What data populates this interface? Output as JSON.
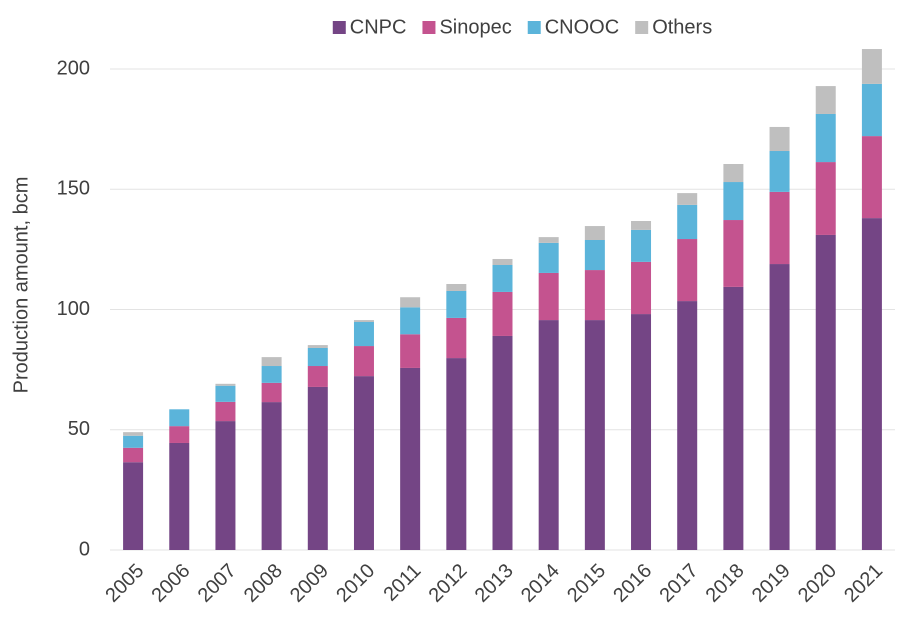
{
  "chart_data": {
    "type": "stacked_bar",
    "y_label": "Production amount, bcm",
    "categories": [
      "2005",
      "2006",
      "2007",
      "2008",
      "2009",
      "2010",
      "2011",
      "2012",
      "2013",
      "2014",
      "2015",
      "2016",
      "2017",
      "2018",
      "2019",
      "2020",
      "2021"
    ],
    "series": [
      {
        "name": "CNPC",
        "color": "#744585",
        "values": [
          36.5,
          44.5,
          53.6,
          61.5,
          67.8,
          72.3,
          75.7,
          79.8,
          89,
          95.6,
          95.6,
          98.1,
          103.5,
          109.4,
          118.9,
          131,
          138
        ]
      },
      {
        "name": "Sinopec",
        "color": "#c4538f",
        "values": [
          6,
          7,
          8,
          8,
          8.7,
          12.5,
          14,
          16.7,
          18.3,
          19.6,
          20.8,
          21.7,
          25.8,
          27.8,
          30,
          30.3,
          34.1
        ]
      },
      {
        "name": "CNOOC",
        "color": "#5bb4da",
        "values": [
          5,
          7,
          6.7,
          7,
          7.5,
          10,
          11.2,
          11.2,
          11.2,
          12.5,
          12.5,
          13.3,
          14.2,
          15.8,
          17,
          20,
          21.7
        ]
      },
      {
        "name": "Others",
        "color": "#bfbfbf",
        "values": [
          1.5,
          0,
          0.8,
          3.7,
          1.2,
          0.8,
          4.2,
          2.9,
          2.5,
          2.4,
          5.8,
          3.7,
          4.9,
          7.5,
          10,
          11.6,
          14.5
        ]
      }
    ],
    "ylim": [
      0,
      200
    ],
    "yticks": [
      0,
      50,
      100,
      150,
      200
    ],
    "grid": true,
    "legend": "top"
  }
}
